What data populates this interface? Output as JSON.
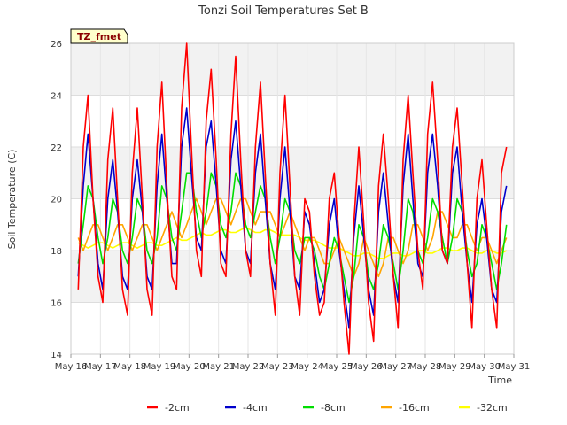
{
  "chart_data": {
    "type": "line",
    "title": "Tonzi Soil Temperatures Set B",
    "xlabel": "Time",
    "ylabel": "Soil Temperature (C)",
    "ylim": [
      14,
      26
    ],
    "xlim": [
      0,
      15
    ],
    "yticks": [
      14,
      16,
      18,
      20,
      22,
      24,
      26
    ],
    "x_tick_labels": [
      "May 16",
      "May 17",
      "May 18",
      "May 19",
      "May 20",
      "May 21",
      "May 22",
      "May 23",
      "May 24",
      "May 25",
      "May 26",
      "May 27",
      "May 28",
      "May 29",
      "May 30",
      "May 31"
    ],
    "x_unit": "days since May 16 00:00",
    "badge": "TZ_fmet",
    "grid": true,
    "legend_position": "bottom",
    "x": [
      0.25,
      0.42,
      0.58,
      0.75,
      0.92,
      1.08,
      1.25,
      1.42,
      1.58,
      1.75,
      1.92,
      2.08,
      2.25,
      2.42,
      2.58,
      2.75,
      2.92,
      3.08,
      3.25,
      3.42,
      3.58,
      3.75,
      3.92,
      4.08,
      4.25,
      4.42,
      4.58,
      4.75,
      4.92,
      5.08,
      5.25,
      5.42,
      5.58,
      5.75,
      5.92,
      6.08,
      6.25,
      6.42,
      6.58,
      6.75,
      6.92,
      7.08,
      7.25,
      7.42,
      7.58,
      7.75,
      7.92,
      8.08,
      8.25,
      8.42,
      8.58,
      8.75,
      8.92,
      9.08,
      9.25,
      9.42,
      9.58,
      9.75,
      9.92,
      10.08,
      10.25,
      10.42,
      10.58,
      10.75,
      10.92,
      11.08,
      11.25,
      11.42,
      11.58,
      11.75,
      11.92,
      12.08,
      12.25,
      12.42,
      12.58,
      12.75,
      12.92,
      13.08,
      13.25,
      13.42,
      13.58,
      13.75,
      13.92,
      14.08,
      14.25,
      14.42,
      14.58,
      14.75
    ],
    "series": [
      {
        "name": "-2cm",
        "color": "#ff0000",
        "values": [
          16.5,
          22.0,
          24.0,
          20.0,
          17.0,
          16.0,
          21.5,
          23.5,
          20.0,
          16.5,
          15.5,
          21.0,
          23.5,
          20.0,
          16.5,
          15.5,
          22.0,
          24.5,
          20.5,
          17.0,
          16.5,
          23.5,
          26.0,
          22.0,
          18.0,
          17.0,
          23.0,
          25.0,
          21.5,
          17.5,
          17.0,
          22.5,
          25.5,
          21.5,
          18.0,
          17.0,
          22.0,
          24.5,
          21.0,
          17.5,
          15.5,
          21.0,
          24.0,
          20.5,
          17.0,
          15.5,
          20.0,
          19.5,
          17.0,
          15.5,
          16.0,
          20.0,
          21.0,
          18.5,
          16.0,
          14.0,
          19.0,
          22.0,
          19.0,
          16.0,
          14.5,
          20.5,
          22.5,
          20.0,
          17.0,
          15.0,
          21.5,
          24.0,
          21.0,
          18.0,
          16.5,
          22.5,
          24.5,
          21.5,
          18.0,
          17.5,
          22.0,
          23.5,
          20.5,
          17.5,
          15.0,
          20.0,
          21.5,
          19.0,
          16.5,
          15.0,
          21.0,
          22.0
        ]
      },
      {
        "name": "-4cm",
        "color": "#0000cc",
        "values": [
          17.0,
          20.5,
          22.5,
          20.0,
          17.5,
          16.5,
          20.0,
          21.5,
          19.5,
          17.0,
          16.5,
          20.0,
          21.5,
          19.5,
          17.0,
          16.5,
          20.5,
          22.5,
          20.0,
          17.5,
          17.5,
          22.0,
          23.5,
          21.0,
          18.5,
          18.0,
          22.0,
          23.0,
          20.5,
          18.0,
          17.5,
          21.5,
          23.0,
          20.5,
          18.0,
          17.5,
          21.0,
          22.5,
          20.0,
          17.5,
          16.5,
          20.0,
          22.0,
          19.5,
          17.0,
          16.5,
          19.5,
          19.0,
          17.5,
          16.0,
          16.5,
          19.0,
          20.0,
          18.0,
          16.5,
          15.0,
          18.5,
          20.5,
          18.5,
          16.5,
          15.5,
          19.5,
          21.0,
          19.0,
          17.0,
          16.0,
          20.5,
          22.5,
          20.0,
          17.5,
          17.0,
          21.0,
          22.5,
          20.5,
          18.0,
          17.5,
          21.0,
          22.0,
          19.5,
          17.5,
          16.0,
          19.0,
          20.0,
          18.5,
          16.5,
          16.0,
          19.5,
          20.5
        ]
      },
      {
        "name": "-8cm",
        "color": "#00dd00",
        "values": [
          17.5,
          19.0,
          20.5,
          20.0,
          18.5,
          17.5,
          18.5,
          20.0,
          19.5,
          18.0,
          17.5,
          18.5,
          20.0,
          19.5,
          18.0,
          17.5,
          18.5,
          20.5,
          20.0,
          18.5,
          18.0,
          19.5,
          21.0,
          21.0,
          19.5,
          18.5,
          19.5,
          21.0,
          20.5,
          19.0,
          18.5,
          19.5,
          21.0,
          20.5,
          19.0,
          18.5,
          19.5,
          20.5,
          20.0,
          18.5,
          17.5,
          18.5,
          20.0,
          19.5,
          18.0,
          17.5,
          18.5,
          18.5,
          18.0,
          17.0,
          16.5,
          17.5,
          18.5,
          18.0,
          17.0,
          16.0,
          17.0,
          19.0,
          18.5,
          17.0,
          16.5,
          17.5,
          19.0,
          18.5,
          17.5,
          16.5,
          18.0,
          20.0,
          19.5,
          18.0,
          17.5,
          18.5,
          20.0,
          19.5,
          18.5,
          17.5,
          18.5,
          20.0,
          19.5,
          18.0,
          17.0,
          17.5,
          19.0,
          18.5,
          17.5,
          16.5,
          17.5,
          19.0
        ]
      },
      {
        "name": "-16cm",
        "color": "#ffa500",
        "values": [
          18.5,
          18.0,
          18.5,
          19.0,
          19.0,
          18.5,
          18.0,
          18.5,
          19.0,
          19.0,
          18.5,
          18.0,
          18.5,
          19.0,
          19.0,
          18.5,
          18.0,
          18.5,
          19.0,
          19.5,
          19.0,
          18.5,
          19.0,
          19.5,
          20.0,
          19.5,
          19.0,
          19.5,
          20.0,
          20.0,
          19.5,
          19.0,
          19.5,
          20.0,
          20.0,
          19.5,
          19.0,
          19.5,
          19.5,
          19.5,
          19.0,
          18.5,
          19.0,
          19.5,
          19.0,
          18.5,
          18.0,
          18.5,
          18.5,
          18.0,
          17.5,
          17.5,
          18.0,
          18.5,
          18.0,
          17.5,
          17.0,
          17.5,
          18.5,
          18.0,
          17.5,
          17.0,
          17.5,
          18.5,
          18.5,
          18.0,
          17.5,
          18.0,
          19.0,
          19.0,
          18.5,
          18.0,
          18.5,
          19.5,
          19.5,
          19.0,
          18.5,
          18.5,
          19.0,
          19.0,
          18.5,
          18.0,
          18.5,
          18.5,
          18.0,
          17.5,
          18.0,
          18.5
        ]
      },
      {
        "name": "-32cm",
        "color": "#ffff00",
        "values": [
          18.3,
          18.2,
          18.1,
          18.2,
          18.3,
          18.3,
          18.2,
          18.1,
          18.2,
          18.3,
          18.3,
          18.2,
          18.1,
          18.2,
          18.3,
          18.3,
          18.2,
          18.2,
          18.3,
          18.4,
          18.5,
          18.4,
          18.4,
          18.5,
          18.6,
          18.7,
          18.6,
          18.6,
          18.7,
          18.8,
          18.8,
          18.7,
          18.7,
          18.8,
          18.9,
          18.8,
          18.7,
          18.7,
          18.8,
          18.8,
          18.7,
          18.6,
          18.6,
          18.6,
          18.6,
          18.5,
          18.4,
          18.4,
          18.4,
          18.3,
          18.2,
          18.1,
          18.1,
          18.1,
          18.0,
          17.9,
          17.8,
          17.8,
          17.9,
          17.9,
          17.8,
          17.7,
          17.7,
          17.8,
          17.9,
          17.9,
          17.8,
          17.8,
          17.9,
          18.0,
          18.0,
          17.9,
          17.9,
          18.0,
          18.1,
          18.1,
          18.0,
          18.0,
          18.1,
          18.1,
          18.0,
          17.9,
          17.9,
          18.0,
          18.0,
          17.9,
          17.9,
          18.0
        ]
      }
    ]
  }
}
